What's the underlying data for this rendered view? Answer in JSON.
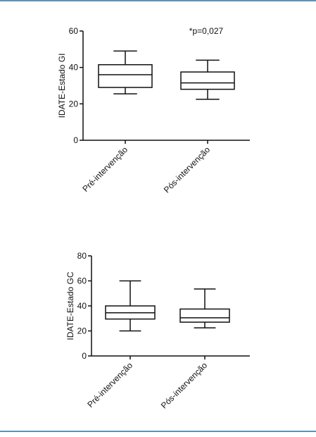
{
  "chart_data": [
    {
      "type": "box",
      "ylabel": "IDATE-Estado GI",
      "annotation": "*p=0,027",
      "categories": [
        "Pré-intervenção",
        "Pós-intervenção"
      ],
      "boxes": [
        {
          "min": 25.5,
          "q1": 29,
          "median": 36,
          "q3": 41.5,
          "max": 49
        },
        {
          "min": 22.5,
          "q1": 28,
          "median": 31.5,
          "q3": 37.5,
          "max": 44
        }
      ],
      "ylim": [
        0,
        60
      ],
      "yticks": [
        0,
        20,
        40,
        60
      ]
    },
    {
      "type": "box",
      "ylabel": "IDATE-Estado GC",
      "categories": [
        "Pré-intervenção",
        "Pós-intervenção"
      ],
      "boxes": [
        {
          "min": 20,
          "q1": 29.5,
          "median": 34.5,
          "q3": 40,
          "max": 60
        },
        {
          "min": 22.5,
          "q1": 27,
          "median": 30.5,
          "q3": 37.5,
          "max": 53.5
        }
      ],
      "ylim": [
        0,
        80
      ],
      "yticks": [
        0,
        20,
        40,
        60,
        80
      ]
    }
  ]
}
